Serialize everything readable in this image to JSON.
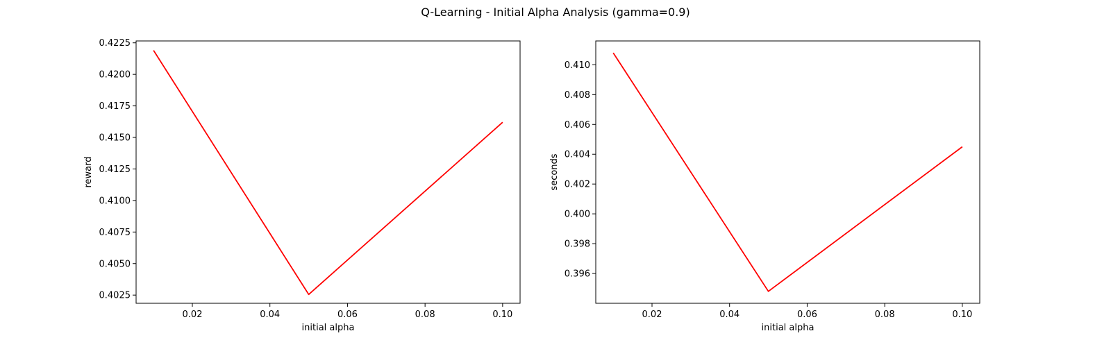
{
  "title": "Q-Learning - Initial Alpha Analysis (gamma=0.9)",
  "chart_data": [
    {
      "type": "line",
      "xlabel": "initial alpha",
      "ylabel": "reward",
      "xlim": [
        0.0055,
        0.1045
      ],
      "ylim": [
        0.40185,
        0.42265
      ],
      "x_ticks": [
        0.02,
        0.04,
        0.06,
        0.08,
        0.1
      ],
      "x_tick_labels": [
        "0.02",
        "0.04",
        "0.06",
        "0.08",
        "0.10"
      ],
      "y_ticks": [
        0.4025,
        0.405,
        0.4075,
        0.41,
        0.4125,
        0.415,
        0.4175,
        0.42,
        0.4225
      ],
      "y_tick_labels": [
        "0.4025",
        "0.4050",
        "0.4075",
        "0.4100",
        "0.4125",
        "0.4150",
        "0.4175",
        "0.4200",
        "0.4225"
      ],
      "grid": false,
      "series": [
        {
          "x": [
            0.01,
            0.05,
            0.1
          ],
          "y": [
            0.4219,
            0.40255,
            0.4162
          ],
          "color": "#ff0000"
        }
      ]
    },
    {
      "type": "line",
      "xlabel": "initial alpha",
      "ylabel": "seconds",
      "xlim": [
        0.0055,
        0.1045
      ],
      "ylim": [
        0.394,
        0.4116
      ],
      "x_ticks": [
        0.02,
        0.04,
        0.06,
        0.08,
        0.1
      ],
      "x_tick_labels": [
        "0.02",
        "0.04",
        "0.06",
        "0.08",
        "0.10"
      ],
      "y_ticks": [
        0.396,
        0.398,
        0.4,
        0.402,
        0.404,
        0.406,
        0.408,
        0.41
      ],
      "y_tick_labels": [
        "0.396",
        "0.398",
        "0.400",
        "0.402",
        "0.404",
        "0.406",
        "0.408",
        "0.410"
      ],
      "grid": false,
      "series": [
        {
          "x": [
            0.01,
            0.05,
            0.1
          ],
          "y": [
            0.4108,
            0.3948,
            0.4045
          ],
          "color": "#ff0000"
        }
      ]
    }
  ]
}
